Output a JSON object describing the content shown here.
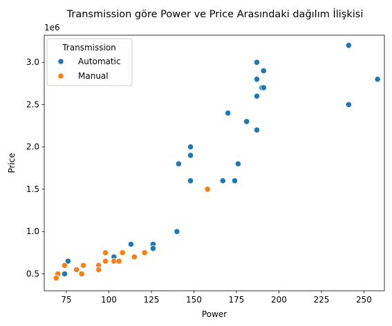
{
  "chart_data": {
    "type": "scatter",
    "title": "Transmission göre Power ve Price Arasındaki dağılım İlişkisi",
    "xlabel": "Power",
    "ylabel": "Price",
    "y_offset_label": "1e6",
    "xlim": [
      62,
      262
    ],
    "ylim": [
      300000,
      3320000
    ],
    "x_ticks": [
      75,
      100,
      125,
      150,
      175,
      200,
      225,
      250
    ],
    "y_ticks": [
      500000,
      1000000,
      1500000,
      2000000,
      2500000,
      3000000
    ],
    "y_tick_labels": [
      "0.5",
      "1.0",
      "1.5",
      "2.0",
      "2.5",
      "3.0"
    ],
    "grid": false,
    "legend": {
      "title": "Transmission",
      "placement": "top-left"
    },
    "series": [
      {
        "name": "Automatic",
        "color": "#1f77b4",
        "points": [
          [
            241,
            3200000
          ],
          [
            187,
            3000000
          ],
          [
            191,
            2900000
          ],
          [
            187,
            2800000
          ],
          [
            258,
            2800000
          ],
          [
            190,
            2700000
          ],
          [
            191,
            2700000
          ],
          [
            187,
            2600000
          ],
          [
            241,
            2500000
          ],
          [
            170,
            2400000
          ],
          [
            181,
            2300000
          ],
          [
            187,
            2200000
          ],
          [
            148,
            2000000
          ],
          [
            148,
            1900000
          ],
          [
            141,
            1800000
          ],
          [
            176,
            1800000
          ],
          [
            148,
            1600000
          ],
          [
            167,
            1600000
          ],
          [
            174,
            1600000
          ],
          [
            140,
            1000000
          ],
          [
            113,
            850000
          ],
          [
            126,
            850000
          ],
          [
            126,
            800000
          ],
          [
            103,
            700000
          ],
          [
            76,
            650000
          ],
          [
            74,
            500000
          ]
        ]
      },
      {
        "name": "Manual",
        "color": "#ff7f0e",
        "points": [
          [
            158,
            1500000
          ],
          [
            98,
            750000
          ],
          [
            108,
            750000
          ],
          [
            121,
            750000
          ],
          [
            115,
            700000
          ],
          [
            98,
            650000
          ],
          [
            103,
            650000
          ],
          [
            106,
            650000
          ],
          [
            74,
            600000
          ],
          [
            85,
            600000
          ],
          [
            94,
            600000
          ],
          [
            81,
            550000
          ],
          [
            94,
            550000
          ],
          [
            70,
            500000
          ],
          [
            84,
            500000
          ],
          [
            69,
            450000
          ]
        ]
      }
    ]
  }
}
